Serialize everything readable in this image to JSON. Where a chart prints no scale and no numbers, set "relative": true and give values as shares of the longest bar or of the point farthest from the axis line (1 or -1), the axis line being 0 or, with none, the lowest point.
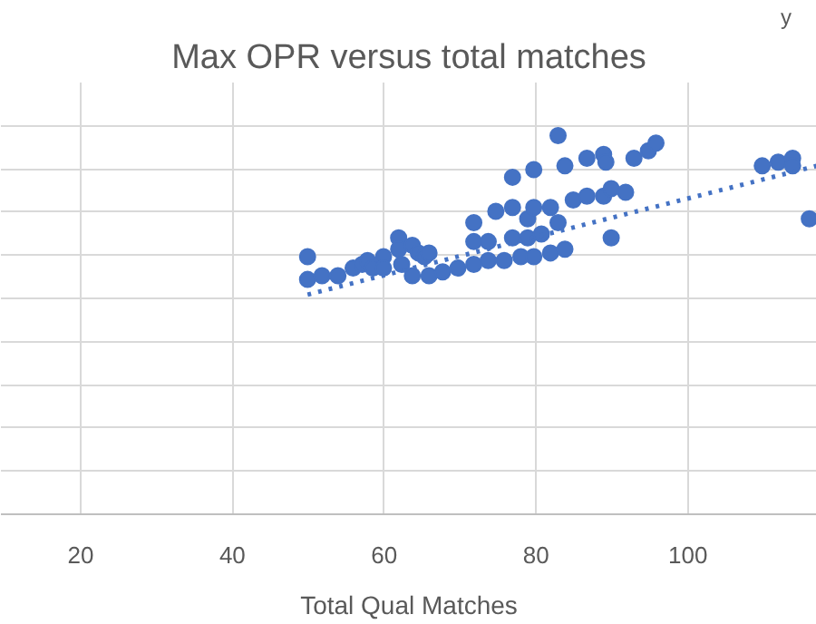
{
  "chart_data": {
    "type": "scatter",
    "title": "Max OPR versus total matches",
    "xlabel": "Total Qual Matches",
    "annotations": [
      "y"
    ],
    "relative": true,
    "xlim": [
      9.5,
      117
    ],
    "xticks": [
      20,
      40,
      60,
      80,
      100
    ],
    "grid": true,
    "series": [
      {
        "marker": "circle",
        "color": "#4472c4",
        "x": [
          49.9,
          49.9,
          51.8,
          53.9,
          55.9,
          57.1,
          57.8,
          58.5,
          59.9,
          59.9,
          61.9,
          61.9,
          62.3,
          63.7,
          63.7,
          64.5,
          65.3,
          65.9,
          65.9,
          67.7,
          69.7,
          71.8,
          71.8,
          71.8,
          73.7,
          73.7,
          74.7,
          75.8,
          76.9,
          76.9,
          76.9,
          78.0,
          78.9,
          78.9,
          79.7,
          79.7,
          79.7,
          80.7,
          81.9,
          81.9,
          82.9,
          82.9,
          83.8,
          83.8,
          84.9,
          86.7,
          86.7,
          88.9,
          88.9,
          89.2,
          89.9,
          89.9,
          91.8,
          92.9,
          94.8,
          95.8,
          109.8,
          111.9,
          113.8,
          113.8,
          116.0
        ],
        "values": [
          0.68,
          0.62,
          0.63,
          0.63,
          0.65,
          0.66,
          0.67,
          0.65,
          0.68,
          0.65,
          0.73,
          0.7,
          0.66,
          0.71,
          0.63,
          0.69,
          0.68,
          0.69,
          0.63,
          0.64,
          0.65,
          0.77,
          0.72,
          0.66,
          0.72,
          0.67,
          0.8,
          0.67,
          0.89,
          0.81,
          0.73,
          0.68,
          0.78,
          0.73,
          0.91,
          0.81,
          0.68,
          0.74,
          0.81,
          0.69,
          1.0,
          0.77,
          0.92,
          0.7,
          0.83,
          0.94,
          0.84,
          0.95,
          0.84,
          0.93,
          0.86,
          0.73,
          0.85,
          0.94,
          0.96,
          0.98,
          0.92,
          0.93,
          0.94,
          0.92,
          0.78
        ]
      },
      {
        "type": "line",
        "color": "#4472c4",
        "line_style": "dotted",
        "x": [
          49.9,
          117
        ],
        "values": [
          0.58,
          0.92
        ]
      }
    ]
  }
}
